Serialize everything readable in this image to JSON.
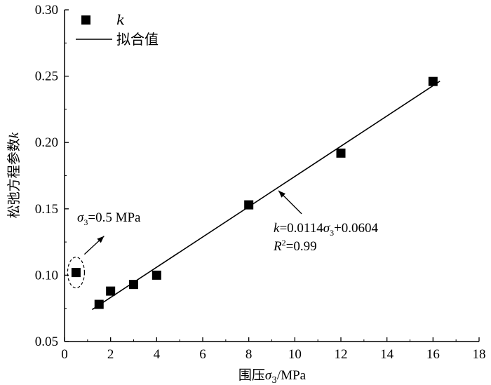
{
  "chart_data": {
    "type": "scatter",
    "title": "",
    "xlabel": "围压",
    "xlabel_symbol": "σ",
    "xlabel_sub": "3",
    "xlabel_unit": "/MPa",
    "ylabel": "松弛方程参数",
    "ylabel_symbol": "k",
    "xlim": [
      0,
      18
    ],
    "ylim": [
      0.05,
      0.3
    ],
    "xticks": [
      0,
      2,
      4,
      6,
      8,
      10,
      12,
      14,
      16,
      18
    ],
    "xtick_labels": [
      "0",
      "2",
      "4",
      "6",
      "8",
      "10",
      "12",
      "14",
      "16",
      "18"
    ],
    "yticks": [
      0.05,
      0.1,
      0.15,
      0.2,
      0.25,
      0.3
    ],
    "ytick_labels": [
      "0.05",
      "0.10",
      "0.15",
      "0.20",
      "0.25",
      "0.30"
    ],
    "grid": false,
    "legend_position": "top-left",
    "series": [
      {
        "name": "k",
        "type": "scatter",
        "marker": "square",
        "x": [
          0.5,
          1.5,
          2,
          3,
          4,
          8,
          12,
          16
        ],
        "y": [
          0.102,
          0.078,
          0.088,
          0.093,
          0.1,
          0.153,
          0.192,
          0.246
        ]
      },
      {
        "name": "拟合值",
        "type": "line",
        "slope": 0.0114,
        "intercept": 0.0604,
        "x_range": [
          1.2,
          16.3
        ]
      }
    ],
    "annotations": {
      "outlier": {
        "text_symbol": "σ",
        "text_sub": "3",
        "text_rest": "=0.5 MPa",
        "x": 0.5,
        "y": 0.102
      },
      "fit_equation": {
        "k": "k",
        "eq_part1": "=0.0114",
        "sigma": "σ",
        "sub": "3",
        "eq_part2": "+0.0604",
        "r2_symbol": "R",
        "r2_sup": "2",
        "r2_rest": "=0.99",
        "arrow_target_x": 9.2
      }
    }
  }
}
